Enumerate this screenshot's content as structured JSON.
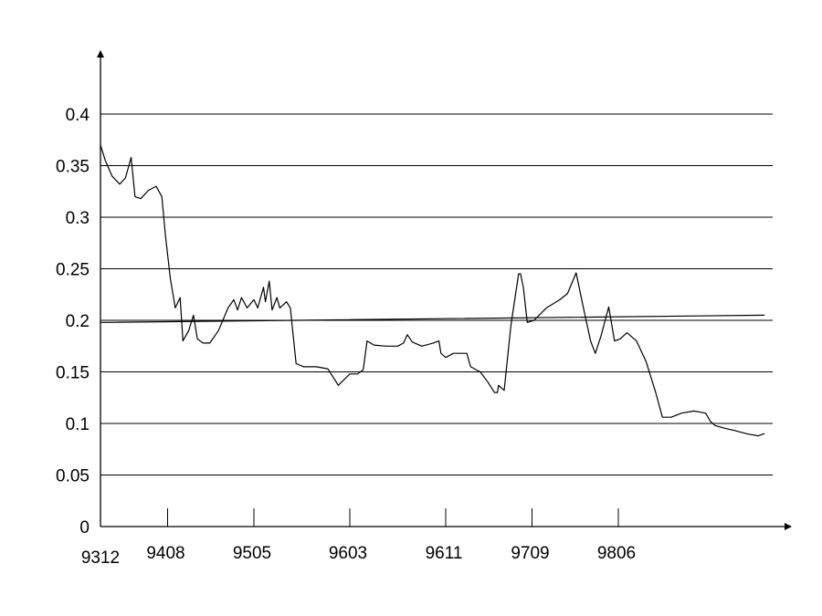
{
  "chart_data": {
    "type": "line",
    "title": "",
    "xlabel": "",
    "ylabel": "",
    "ylim": [
      0,
      0.45
    ],
    "yticks": [
      0,
      0.05,
      0.1,
      0.15,
      0.2,
      0.25,
      0.3,
      0.35,
      0.4
    ],
    "ytick_labels": [
      "0",
      "0.05",
      "0.1",
      "0.15",
      "0.2",
      "0.25",
      "0.3",
      "0.35",
      "0.4"
    ],
    "xlim": [
      0,
      69
    ],
    "xticks": [
      0,
      7,
      16,
      26,
      36,
      45,
      54
    ],
    "xtick_labels": [
      "9312",
      "9408",
      "9505",
      "9603",
      "9611",
      "9709",
      "9806"
    ],
    "grid": true,
    "series": [
      {
        "values": [
          [
            0,
            0.37
          ],
          [
            0.5,
            0.355
          ],
          [
            1.2,
            0.34
          ],
          [
            2,
            0.332
          ],
          [
            2.6,
            0.338
          ],
          [
            3.2,
            0.358
          ],
          [
            3.6,
            0.32
          ],
          [
            4.2,
            0.318
          ],
          [
            5,
            0.326
          ],
          [
            5.8,
            0.33
          ],
          [
            6.4,
            0.32
          ],
          [
            6.8,
            0.28
          ],
          [
            7.3,
            0.24
          ],
          [
            7.8,
            0.212
          ],
          [
            8.3,
            0.222
          ],
          [
            8.6,
            0.18
          ],
          [
            9.2,
            0.19
          ],
          [
            9.7,
            0.205
          ],
          [
            10.1,
            0.182
          ],
          [
            10.7,
            0.178
          ],
          [
            11.4,
            0.178
          ],
          [
            12.3,
            0.19
          ],
          [
            13.3,
            0.212
          ],
          [
            13.9,
            0.22
          ],
          [
            14.3,
            0.21
          ],
          [
            14.7,
            0.222
          ],
          [
            15.3,
            0.212
          ],
          [
            16.0,
            0.22
          ],
          [
            16.4,
            0.212
          ],
          [
            17.0,
            0.232
          ],
          [
            17.2,
            0.218
          ],
          [
            17.6,
            0.238
          ],
          [
            17.9,
            0.21
          ],
          [
            18.4,
            0.222
          ],
          [
            18.7,
            0.212
          ],
          [
            19.4,
            0.218
          ],
          [
            19.8,
            0.212
          ],
          [
            20.4,
            0.158
          ],
          [
            21.2,
            0.155
          ],
          [
            22.5,
            0.155
          ],
          [
            23.7,
            0.153
          ],
          [
            24.8,
            0.137
          ],
          [
            26.0,
            0.148
          ],
          [
            26.8,
            0.148
          ],
          [
            27.4,
            0.152
          ],
          [
            27.8,
            0.18
          ],
          [
            28.5,
            0.176
          ],
          [
            29.8,
            0.175
          ],
          [
            31.0,
            0.175
          ],
          [
            31.6,
            0.178
          ],
          [
            32.0,
            0.186
          ],
          [
            32.5,
            0.179
          ],
          [
            33.5,
            0.175
          ],
          [
            34.7,
            0.178
          ],
          [
            35.3,
            0.18
          ],
          [
            35.5,
            0.168
          ],
          [
            36.0,
            0.164
          ],
          [
            36.8,
            0.168
          ],
          [
            37.6,
            0.168
          ],
          [
            38.2,
            0.168
          ],
          [
            38.6,
            0.155
          ],
          [
            39.6,
            0.15
          ],
          [
            40.4,
            0.14
          ],
          [
            41.1,
            0.13
          ],
          [
            41.4,
            0.13
          ],
          [
            41.5,
            0.137
          ],
          [
            42.1,
            0.132
          ],
          [
            42.8,
            0.195
          ],
          [
            43.6,
            0.245
          ],
          [
            43.8,
            0.245
          ],
          [
            44.1,
            0.232
          ],
          [
            44.5,
            0.198
          ],
          [
            45.2,
            0.2
          ],
          [
            46.5,
            0.212
          ],
          [
            47.9,
            0.22
          ],
          [
            48.7,
            0.226
          ],
          [
            49.6,
            0.246
          ],
          [
            50.3,
            0.215
          ],
          [
            51.1,
            0.18
          ],
          [
            51.6,
            0.168
          ],
          [
            52.2,
            0.185
          ],
          [
            53.0,
            0.213
          ],
          [
            53.6,
            0.18
          ],
          [
            54.2,
            0.182
          ],
          [
            54.9,
            0.188
          ],
          [
            55.9,
            0.18
          ],
          [
            56.9,
            0.16
          ],
          [
            57.9,
            0.13
          ],
          [
            58.6,
            0.106
          ],
          [
            59.5,
            0.106
          ],
          [
            60.6,
            0.11
          ],
          [
            61.9,
            0.112
          ],
          [
            63.1,
            0.11
          ],
          [
            63.6,
            0.102
          ],
          [
            64.1,
            0.098
          ],
          [
            65.2,
            0.095
          ],
          [
            66.2,
            0.093
          ],
          [
            67.4,
            0.09
          ],
          [
            68.6,
            0.088
          ],
          [
            69.2,
            0.09
          ]
        ]
      },
      {
        "values": [
          [
            0,
            0.198
          ],
          [
            69.2,
            0.205
          ]
        ]
      }
    ]
  }
}
